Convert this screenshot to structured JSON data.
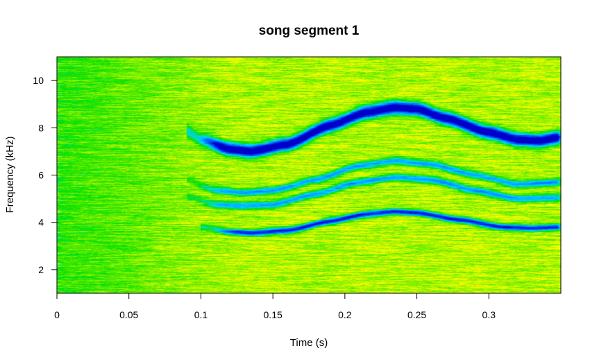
{
  "chart_data": {
    "type": "heatmap",
    "title": "song segment 1",
    "xlabel": "Time (s)",
    "ylabel": "Frequency (kHz)",
    "xlim": [
      0,
      0.35
    ],
    "ylim": [
      1,
      11
    ],
    "x_ticks": [
      0,
      0.05,
      0.1,
      0.15,
      0.2,
      0.25,
      0.3
    ],
    "x_tick_labels": [
      "0",
      "0.05",
      "0.1",
      "0.15",
      "0.2",
      "0.25",
      "0.3"
    ],
    "y_ticks": [
      2,
      4,
      6,
      8,
      10
    ],
    "y_tick_labels": [
      "2",
      "4",
      "6",
      "8",
      "10"
    ],
    "colors": {
      "background_low": "#00e000",
      "background_high": "#ffff00",
      "background_hot": "#ffb000",
      "strong_energy": "#0000c8",
      "medium_energy": "#0060ff",
      "weak_energy": "#00d8ff"
    },
    "series": [
      {
        "intensity": 1.0,
        "bandwidth_khz": 0.36,
        "x": [
          0.09,
          0.1,
          0.12,
          0.135,
          0.16,
          0.19,
          0.215,
          0.235,
          0.25,
          0.27,
          0.3,
          0.32,
          0.335,
          0.35
        ],
        "y": [
          7.85,
          7.5,
          7.1,
          7.0,
          7.3,
          8.1,
          8.65,
          8.85,
          8.8,
          8.4,
          7.8,
          7.5,
          7.45,
          7.6
        ]
      },
      {
        "intensity": 0.45,
        "bandwidth_khz": 0.22,
        "x": [
          0.09,
          0.11,
          0.13,
          0.15,
          0.18,
          0.21,
          0.235,
          0.26,
          0.29,
          0.32,
          0.35
        ],
        "y": [
          5.8,
          5.35,
          5.25,
          5.35,
          5.8,
          6.4,
          6.6,
          6.45,
          6.0,
          5.6,
          5.7
        ]
      },
      {
        "intensity": 0.45,
        "bandwidth_khz": 0.22,
        "x": [
          0.09,
          0.11,
          0.13,
          0.15,
          0.18,
          0.21,
          0.235,
          0.26,
          0.29,
          0.32,
          0.35
        ],
        "y": [
          5.1,
          4.75,
          4.7,
          4.75,
          5.2,
          5.7,
          5.9,
          5.8,
          5.35,
          5.0,
          5.05
        ]
      },
      {
        "intensity": 0.75,
        "bandwidth_khz": 0.18,
        "x": [
          0.1,
          0.12,
          0.135,
          0.16,
          0.19,
          0.215,
          0.235,
          0.25,
          0.28,
          0.31,
          0.33,
          0.35
        ],
        "y": [
          3.8,
          3.6,
          3.55,
          3.65,
          4.05,
          4.35,
          4.45,
          4.4,
          4.1,
          3.8,
          3.75,
          3.8
        ]
      }
    ]
  }
}
